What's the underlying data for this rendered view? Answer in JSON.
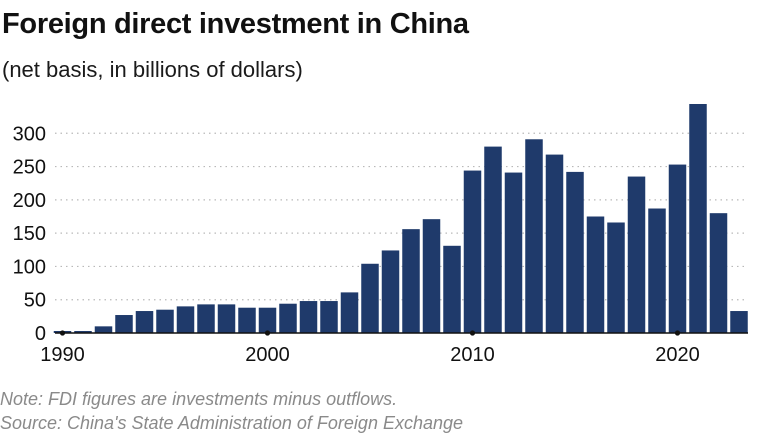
{
  "header": {
    "title": "Foreign direct investment in China",
    "subtitle": "(net basis, in billions of dollars)"
  },
  "footer": {
    "note": "Note: FDI figures are investments minus outflows.",
    "source": "Source: China's State Administration of Foreign Exchange"
  },
  "colors": {
    "bar": "#1f3a6b",
    "grid": "#b9b9b9",
    "axis": "#111111"
  },
  "chart_data": {
    "type": "bar",
    "title": "Foreign direct investment in China",
    "subtitle": "(net basis, in billions of dollars)",
    "xlabel": "",
    "ylabel": "",
    "x": [
      1990,
      1991,
      1992,
      1993,
      1994,
      1995,
      1996,
      1997,
      1998,
      1999,
      2000,
      2001,
      2002,
      2003,
      2004,
      2005,
      2006,
      2007,
      2008,
      2009,
      2010,
      2011,
      2012,
      2013,
      2014,
      2015,
      2016,
      2017,
      2018,
      2019,
      2020,
      2021,
      2022,
      2023
    ],
    "values": [
      3,
      3,
      10,
      27,
      33,
      35,
      40,
      43,
      43,
      38,
      38,
      44,
      48,
      48,
      61,
      104,
      124,
      156,
      171,
      131,
      244,
      280,
      241,
      291,
      268,
      242,
      175,
      166,
      235,
      187,
      253,
      344,
      180,
      33
    ],
    "ylim": [
      0,
      350
    ],
    "yticks": [
      0,
      50,
      100,
      150,
      200,
      250,
      300
    ],
    "xticks": [
      1990,
      2000,
      2010,
      2020
    ],
    "grid": true
  }
}
